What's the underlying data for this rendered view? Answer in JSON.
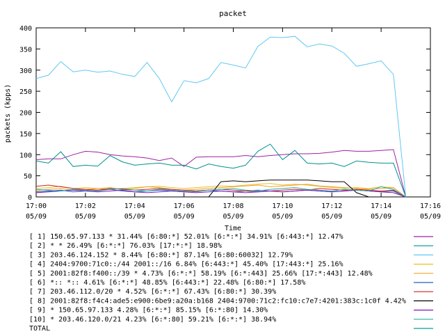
{
  "chart_data": {
    "type": "line",
    "title": "packet",
    "xlabel": "Time",
    "ylabel": "packets (kpps)",
    "ylim": [
      0,
      400
    ],
    "yticks": [
      0,
      50,
      100,
      150,
      200,
      250,
      300,
      350,
      400
    ],
    "xlim_minutes": [
      0,
      16
    ],
    "xticks": [
      {
        "m": 0,
        "time": "17:00",
        "date": "05/09"
      },
      {
        "m": 2,
        "time": "17:02",
        "date": "05/09"
      },
      {
        "m": 4,
        "time": "17:04",
        "date": "05/09"
      },
      {
        "m": 6,
        "time": "17:06",
        "date": "05/09"
      },
      {
        "m": 8,
        "time": "17:08",
        "date": "05/09"
      },
      {
        "m": 10,
        "time": "17:10",
        "date": "05/09"
      },
      {
        "m": 12,
        "time": "17:12",
        "date": "05/09"
      },
      {
        "m": 14,
        "time": "17:14",
        "date": "05/09"
      },
      {
        "m": 16,
        "time": "17:16",
        "date": "05/09"
      }
    ],
    "x_minutes": [
      0,
      0.5,
      1,
      1.5,
      2,
      2.5,
      3,
      3.5,
      4,
      4.5,
      5,
      5.5,
      6,
      6.5,
      7,
      7.5,
      8,
      8.5,
      9,
      9.5,
      10,
      10.5,
      11,
      11.5,
      12,
      12.5,
      13,
      13.5,
      14,
      14.5,
      15
    ],
    "legend_position": "bottom",
    "series": [
      {
        "name": "[ 1] 150.65.97.133 * 31.44%  [6:80:*] 52.01% [6:*:*] 34.91% [6:443:*] 12.47%",
        "color": "#a020a0",
        "values": [
          88,
          90,
          90,
          100,
          108,
          106,
          100,
          97,
          95,
          92,
          86,
          92,
          72,
          94,
          95,
          95,
          95,
          98,
          95,
          98,
          100,
          102,
          102,
          103,
          106,
          110,
          108,
          108,
          110,
          112,
          0
        ]
      },
      {
        "name": "[ 2] * * 26.49%  [6:*:*] 76.03% [17:*:*] 18.98%",
        "color": "#009090",
        "values": [
          85,
          80,
          107,
          72,
          75,
          73,
          98,
          83,
          75,
          78,
          80,
          75,
          75,
          66,
          78,
          72,
          68,
          75,
          108,
          125,
          88,
          110,
          80,
          78,
          80,
          72,
          85,
          82,
          80,
          80,
          0
        ]
      },
      {
        "name": "[ 3] 203.46.124.152 * 8.44%  [6:80:*] 87.14% [6:80:60032] 12.79%",
        "color": "#60c8f0",
        "values": [
          280,
          288,
          320,
          296,
          300,
          295,
          298,
          290,
          285,
          318,
          280,
          225,
          275,
          270,
          280,
          318,
          312,
          305,
          356,
          378,
          377,
          380,
          355,
          362,
          357,
          340,
          309,
          315,
          322,
          290,
          0
        ]
      },
      {
        "name": "[ 4] 2404:9700:71c0::/44 2001::/16 6.84%  [6:443:*] 45.40% [17:443:*] 25.16%",
        "color": "#e8c020",
        "values": [
          20,
          22,
          25,
          20,
          22,
          20,
          18,
          20,
          22,
          24,
          25,
          22,
          20,
          22,
          24,
          26,
          25,
          28,
          30,
          32,
          28,
          30,
          28,
          25,
          22,
          20,
          22,
          20,
          24,
          22,
          0
        ]
      },
      {
        "name": "[ 5] 2001:82f8:f400::/39 * 4.73%  [6:*:*] 58.19% [6:*:443] 25.66% [17:*:443] 12.48%",
        "color": "#f0a030",
        "values": [
          15,
          18,
          20,
          16,
          18,
          20,
          22,
          18,
          20,
          24,
          22,
          18,
          16,
          18,
          20,
          22,
          24,
          26,
          28,
          24,
          26,
          28,
          30,
          26,
          24,
          22,
          20,
          18,
          20,
          22,
          0
        ]
      },
      {
        "name": "[ 6] *:: *:: 4.61%  [6:*:*] 48.85% [6:443:*] 22.48% [6:80:*] 17.58%",
        "color": "#2060c0",
        "values": [
          12,
          14,
          16,
          12,
          14,
          16,
          18,
          14,
          12,
          14,
          16,
          14,
          12,
          14,
          16,
          14,
          12,
          14,
          16,
          14,
          12,
          14,
          16,
          14,
          12,
          14,
          16,
          14,
          12,
          14,
          0
        ]
      },
      {
        "name": "[ 7] 203.46.112.0/20 * 4.52%  [6:*:*] 67.43% [6:80:*] 30.39%",
        "color": "#d02020",
        "values": [
          25,
          28,
          24,
          20,
          18,
          16,
          20,
          18,
          16,
          18,
          20,
          18,
          16,
          14,
          16,
          18,
          16,
          14,
          12,
          14,
          16,
          18,
          16,
          20,
          18,
          16,
          18,
          16,
          14,
          16,
          0
        ]
      },
      {
        "name": "[ 8] 2001:82f8:f4c4:ade5:e900:6be9:a20a:b168 2404:9700:71c2:fc10:c7e7:4201:383c:1c0f 4.42%",
        "color": "#000000",
        "values": [
          0,
          0,
          0,
          0,
          0,
          0,
          0,
          0,
          0,
          0,
          0,
          0,
          0,
          0,
          0,
          36,
          38,
          36,
          38,
          40,
          40,
          40,
          40,
          38,
          36,
          36,
          10,
          0,
          0,
          0,
          0
        ]
      },
      {
        "name": "[ 9] * 150.65.97.133 4.28%  [6:*:*] 85.15% [6:*:80] 14.30%",
        "color": "#8010c0",
        "values": [
          10,
          12,
          14,
          16,
          14,
          12,
          14,
          16,
          12,
          10,
          12,
          14,
          12,
          10,
          12,
          14,
          12,
          10,
          12,
          14,
          12,
          14,
          16,
          14,
          12,
          14,
          16,
          14,
          12,
          10,
          0
        ]
      },
      {
        "name": "[10] * 203.46.120.0/21 4.23%  [6:*:80] 59.21% [6:*:*] 38.94%",
        "color": "#20b0a0",
        "values": [
          18,
          16,
          14,
          18,
          16,
          14,
          18,
          20,
          16,
          14,
          18,
          16,
          14,
          12,
          16,
          18,
          20,
          16,
          14,
          18,
          20,
          22,
          18,
          16,
          14,
          18,
          16,
          14,
          24,
          18,
          0
        ]
      }
    ],
    "total_label": "TOTAL"
  }
}
